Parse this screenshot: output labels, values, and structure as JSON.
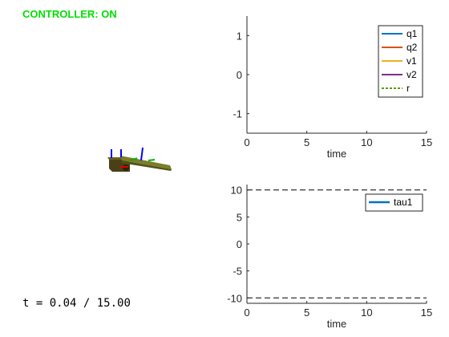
{
  "status": {
    "text": "CONTROLLER: ON",
    "color": "#00e000"
  },
  "time_readout": {
    "prefix": "t = ",
    "current": "0.04",
    "separator": " / ",
    "total": "15.00"
  },
  "colors": {
    "axis": "#262626",
    "q1": "#0072bd",
    "q2": "#d95319",
    "v1": "#edb120",
    "v2": "#7e2f8e",
    "r": "#5a9e12",
    "tau1": "#0072bd",
    "limit": "#000000"
  },
  "chart_data": [
    {
      "type": "line",
      "xlabel": "time",
      "ylabel": "",
      "xlim": [
        0,
        15
      ],
      "ylim": [
        -1.5,
        1.5
      ],
      "xticks": [
        "0",
        "5",
        "10",
        "15"
      ],
      "xtick_values": [
        0,
        5,
        10,
        15
      ],
      "yticks": [
        "1",
        "0",
        "-1"
      ],
      "ytick_values": [
        1,
        0,
        -1
      ],
      "legend_position": "top-right",
      "series": [
        {
          "name": "q1",
          "style": "solid",
          "x": [],
          "y": []
        },
        {
          "name": "q2",
          "style": "solid",
          "x": [],
          "y": []
        },
        {
          "name": "v1",
          "style": "solid",
          "x": [],
          "y": []
        },
        {
          "name": "v2",
          "style": "solid",
          "x": [],
          "y": []
        },
        {
          "name": "r",
          "style": "dotted",
          "x": [],
          "y": []
        }
      ]
    },
    {
      "type": "line",
      "xlabel": "time",
      "ylabel": "",
      "xlim": [
        0,
        15
      ],
      "ylim": [
        -11,
        11
      ],
      "xticks": [
        "0",
        "5",
        "10",
        "15"
      ],
      "xtick_values": [
        0,
        5,
        10,
        15
      ],
      "yticks": [
        "10",
        "5",
        "0",
        "-5",
        "-10"
      ],
      "ytick_values": [
        10,
        5,
        0,
        -5,
        -10
      ],
      "legend_position": "top-right",
      "limits": [
        10,
        -10
      ],
      "series": [
        {
          "name": "tau1",
          "style": "solid",
          "x": [],
          "y": []
        }
      ]
    }
  ]
}
